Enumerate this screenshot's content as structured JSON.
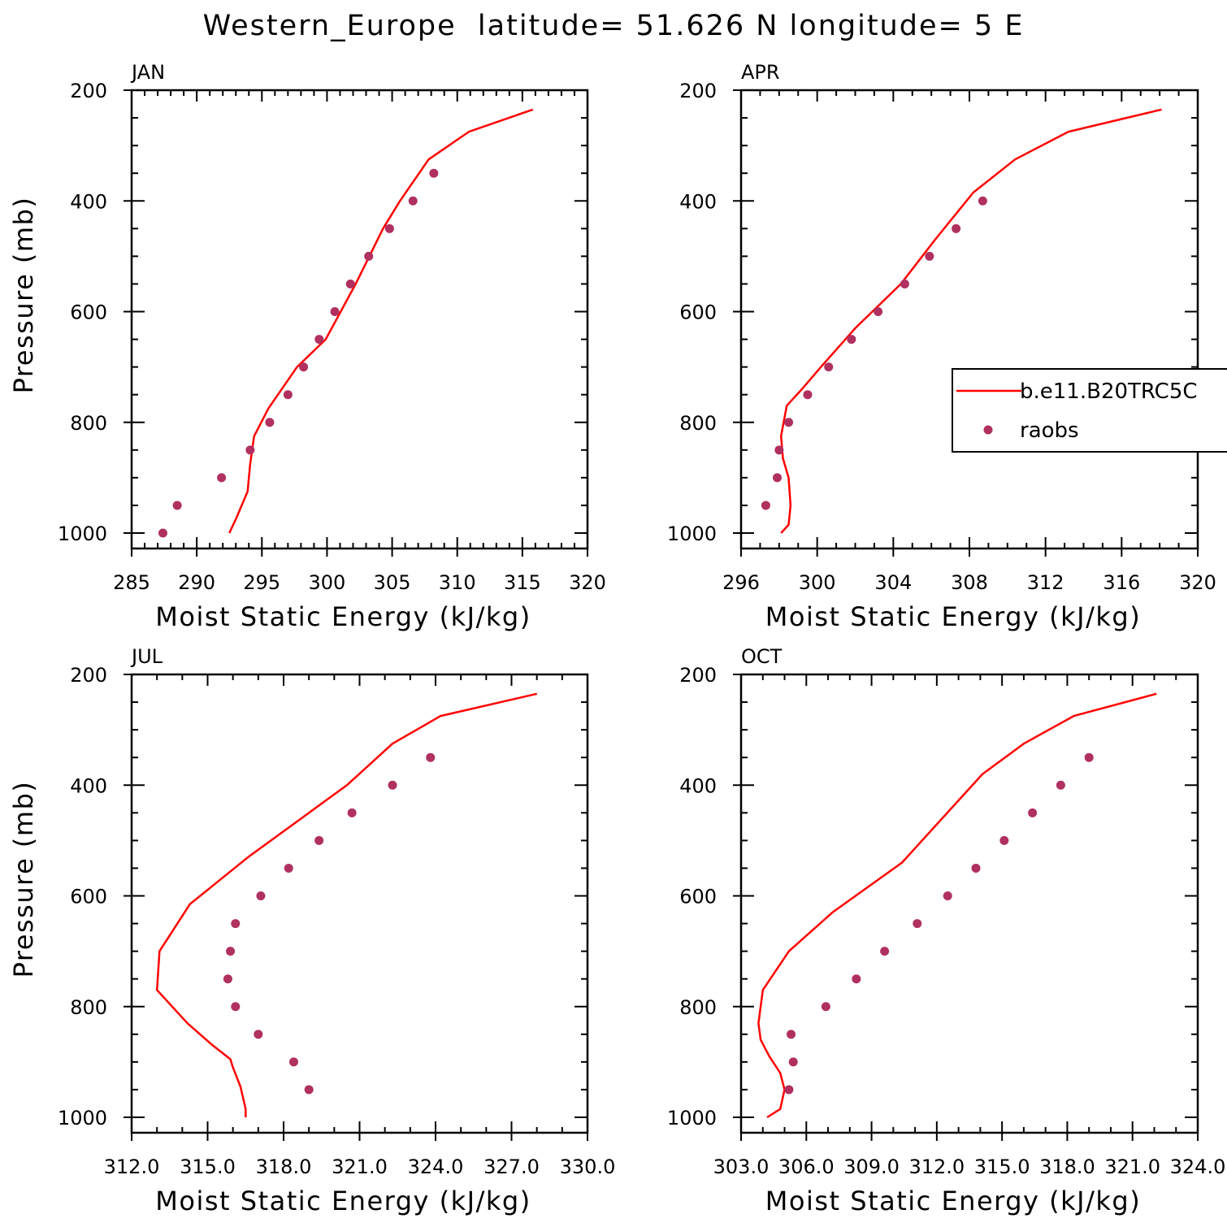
{
  "title": "Western_Europe  latitude= 51.626 N longitude= 5 E",
  "colors": {
    "model": "#ff0000",
    "obs": "#b03060"
  },
  "legend": {
    "entries": [
      {
        "label": "b.e11.B20TRC5C",
        "style": "line",
        "color": "#ff0000"
      },
      {
        "label": "raobs",
        "style": "marker",
        "color": "#b03060"
      }
    ],
    "placement": "right"
  },
  "chart_data": [
    {
      "type": "line",
      "panel": "JAN",
      "xlabel": "Moist Static Energy (kJ/kg)",
      "ylabel": "Pressure (mb)",
      "xlim": [
        285,
        320
      ],
      "ylim": [
        1000,
        200
      ],
      "xticks": [
        285,
        290,
        295,
        300,
        305,
        310,
        315,
        320
      ],
      "xtick_labels": [
        "285",
        "290",
        "295",
        "300",
        "305",
        "310",
        "315",
        "320"
      ],
      "xminor": 1,
      "yticks": [
        200,
        400,
        600,
        800,
        1000
      ],
      "ytick_labels": [
        "200",
        "400",
        "600",
        "800",
        "1000"
      ],
      "series": [
        {
          "name": "b.e11.B20TRC5C",
          "style": "line",
          "x": [
            292.5,
            293.0,
            293.9,
            294.1,
            294.4,
            295.5,
            297.7,
            299.9,
            302.2,
            304.3,
            305.6,
            307.8,
            310.9,
            315.8
          ],
          "y": [
            1000,
            975,
            925,
            875,
            825,
            775,
            700,
            650,
            550,
            450,
            400,
            325,
            275,
            235
          ]
        },
        {
          "name": "raobs",
          "style": "marker",
          "x": [
            287.4,
            288.5,
            291.9,
            294.1,
            295.6,
            297.0,
            298.2,
            299.4,
            300.6,
            301.8,
            303.2,
            304.8,
            306.6,
            308.2
          ],
          "y": [
            1000,
            950,
            900,
            850,
            800,
            750,
            700,
            650,
            600,
            550,
            500,
            450,
            400,
            350
          ]
        }
      ]
    },
    {
      "type": "line",
      "panel": "APR",
      "xlabel": "Moist Static Energy (kJ/kg)",
      "ylabel": "",
      "xlim": [
        296,
        320
      ],
      "ylim": [
        1000,
        200
      ],
      "xticks": [
        296,
        300,
        304,
        308,
        312,
        316,
        320
      ],
      "xtick_labels": [
        "296",
        "300",
        "304",
        "308",
        "312",
        "316",
        "320"
      ],
      "xminor": 1,
      "yticks": [
        200,
        400,
        600,
        800,
        1000
      ],
      "ytick_labels": [
        "200",
        "400",
        "600",
        "800",
        "1000"
      ],
      "series": [
        {
          "name": "b.e11.B20TRC5C",
          "style": "line",
          "x": [
            298.1,
            298.5,
            298.6,
            298.5,
            298.2,
            298.1,
            298.4,
            299.2,
            300.2,
            302.0,
            304.4,
            306.2,
            308.2,
            310.4,
            313.2,
            318.1
          ],
          "y": [
            1000,
            985,
            950,
            900,
            865,
            825,
            770,
            740,
            700,
            630,
            550,
            470,
            385,
            325,
            275,
            235
          ]
        },
        {
          "name": "raobs",
          "style": "marker",
          "x": [
            297.3,
            297.9,
            298.0,
            298.5,
            299.5,
            300.6,
            301.8,
            303.2,
            304.6,
            305.9,
            307.3,
            308.7
          ],
          "y": [
            950,
            900,
            850,
            800,
            750,
            700,
            650,
            600,
            550,
            500,
            450,
            400
          ]
        }
      ]
    },
    {
      "type": "line",
      "panel": "JUL",
      "xlabel": "Moist Static Energy (kJ/kg)",
      "ylabel": "Pressure (mb)",
      "xlim": [
        312,
        330
      ],
      "ylim": [
        1000,
        200
      ],
      "xticks": [
        312,
        315,
        318,
        321,
        324,
        327,
        330
      ],
      "xtick_labels": [
        "312.0",
        "315.0",
        "318.0",
        "321.0",
        "324.0",
        "327.0",
        "330.0"
      ],
      "xminor": 1,
      "yticks": [
        200,
        400,
        600,
        800,
        1000
      ],
      "ytick_labels": [
        "200",
        "400",
        "600",
        "800",
        "1000"
      ],
      "series": [
        {
          "name": "b.e11.B20TRC5C",
          "style": "line",
          "x": [
            316.5,
            316.5,
            316.3,
            316.0,
            315.9,
            315.2,
            314.2,
            313.0,
            313.1,
            314.3,
            316.6,
            320.5,
            322.3,
            324.2,
            328.0
          ],
          "y": [
            1000,
            985,
            945,
            910,
            895,
            870,
            830,
            770,
            700,
            615,
            530,
            400,
            325,
            275,
            235
          ]
        },
        {
          "name": "raobs",
          "style": "marker",
          "x": [
            319.0,
            318.4,
            317.0,
            316.1,
            315.8,
            315.9,
            316.1,
            317.1,
            318.2,
            319.4,
            320.7,
            322.3,
            323.8
          ],
          "y": [
            950,
            900,
            850,
            800,
            750,
            700,
            650,
            600,
            550,
            500,
            450,
            400,
            350
          ]
        }
      ]
    },
    {
      "type": "line",
      "panel": "OCT",
      "xlabel": "Moist Static Energy (kJ/kg)",
      "ylabel": "",
      "xlim": [
        303,
        324
      ],
      "ylim": [
        1000,
        200
      ],
      "xticks": [
        303,
        306,
        309,
        312,
        315,
        318,
        321,
        324
      ],
      "xtick_labels": [
        "303.0",
        "306.0",
        "309.0",
        "312.0",
        "315.0",
        "318.0",
        "321.0",
        "324.0"
      ],
      "xminor": 1,
      "yticks": [
        200,
        400,
        600,
        800,
        1000
      ],
      "ytick_labels": [
        "200",
        "400",
        "600",
        "800",
        "1000"
      ],
      "series": [
        {
          "name": "b.e11.B20TRC5C",
          "style": "line",
          "x": [
            304.2,
            304.8,
            305.0,
            304.8,
            304.3,
            303.9,
            303.8,
            304.0,
            305.2,
            307.2,
            310.4,
            314.1,
            316.0,
            318.3,
            322.1
          ],
          "y": [
            1000,
            985,
            950,
            920,
            890,
            860,
            830,
            770,
            700,
            630,
            540,
            380,
            325,
            275,
            235
          ]
        },
        {
          "name": "raobs",
          "style": "marker",
          "x": [
            305.2,
            305.4,
            305.3,
            306.9,
            308.3,
            309.6,
            311.1,
            312.5,
            313.8,
            315.1,
            316.4,
            317.7,
            319.0
          ],
          "y": [
            950,
            900,
            850,
            800,
            750,
            700,
            650,
            600,
            550,
            500,
            450,
            400,
            350
          ]
        }
      ]
    }
  ]
}
